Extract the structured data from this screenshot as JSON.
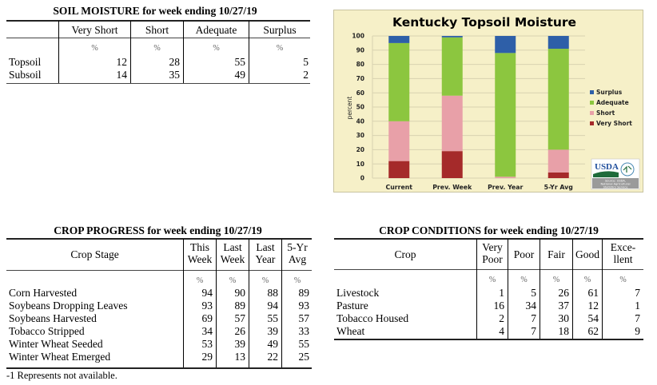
{
  "soil_moisture": {
    "title": "SOIL MOISTURE for week ending 10/27/19",
    "columns": [
      "Very Short",
      "Short",
      "Adequate",
      "Surplus"
    ],
    "unit": "%",
    "rows": [
      {
        "label": "Topsoil",
        "values": [
          "12",
          "28",
          "55",
          "5"
        ]
      },
      {
        "label": "Subsoil",
        "values": [
          "14",
          "35",
          "49",
          "2"
        ]
      }
    ]
  },
  "crop_progress": {
    "title": "CROP PROGRESS for week ending 10/27/19",
    "stage_header": "Crop Stage",
    "columns": [
      {
        "line1": "This",
        "line2": "Week"
      },
      {
        "line1": "Last",
        "line2": "Week"
      },
      {
        "line1": "Last",
        "line2": "Year"
      },
      {
        "line1": "5-Yr",
        "line2": "Avg"
      }
    ],
    "unit": "%",
    "rows": [
      {
        "label": "Corn Harvested",
        "values": [
          "94",
          "90",
          "88",
          "89"
        ]
      },
      {
        "label": "Soybeans Dropping Leaves",
        "values": [
          "93",
          "89",
          "94",
          "93"
        ]
      },
      {
        "label": "Soybeans Harvested",
        "values": [
          "69",
          "57",
          "55",
          "57"
        ]
      },
      {
        "label": "Tobacco Stripped",
        "values": [
          "34",
          "26",
          "39",
          "33"
        ]
      },
      {
        "label": "Winter Wheat Seeded",
        "values": [
          "53",
          "39",
          "49",
          "55"
        ]
      },
      {
        "label": "Winter Wheat Emerged",
        "values": [
          "29",
          "13",
          "22",
          "25"
        ]
      }
    ],
    "footnote": "-1 Represents not available."
  },
  "crop_conditions": {
    "title": "CROP CONDITIONS for week ending 10/27/19",
    "crop_header": "Crop",
    "columns": [
      {
        "line1": "Very",
        "line2": "Poor"
      },
      {
        "line1": "Poor",
        "line2": ""
      },
      {
        "line1": "Fair",
        "line2": ""
      },
      {
        "line1": "Good",
        "line2": ""
      },
      {
        "line1": "Exce-",
        "line2": "llent"
      }
    ],
    "unit": "%",
    "rows": [
      {
        "label": "Livestock",
        "values": [
          "1",
          "5",
          "26",
          "61",
          "7"
        ]
      },
      {
        "label": "Pasture",
        "values": [
          "16",
          "34",
          "37",
          "12",
          "1"
        ]
      },
      {
        "label": "Tobacco Housed",
        "values": [
          "2",
          "7",
          "30",
          "54",
          "7"
        ]
      },
      {
        "label": "Wheat",
        "values": [
          "4",
          "7",
          "18",
          "62",
          "9"
        ]
      }
    ]
  },
  "chart_data": {
    "type": "bar",
    "stacked": true,
    "title": "Kentucky Topsoil Moisture",
    "xlabel": "",
    "ylabel": "percent",
    "ylim": [
      0,
      100
    ],
    "yticks": [
      0,
      10,
      20,
      30,
      40,
      50,
      60,
      70,
      80,
      90,
      100
    ],
    "grid": true,
    "legend_position": "right",
    "categories": [
      "Current",
      "Prev. Week",
      "Prev. Year",
      "5-Yr Avg"
    ],
    "series": [
      {
        "name": "Very Short",
        "color": "#a52a2a",
        "values": [
          12,
          19,
          0,
          4
        ]
      },
      {
        "name": "Short",
        "color": "#e8a0a8",
        "values": [
          28,
          39,
          1,
          16
        ]
      },
      {
        "name": "Adequate",
        "color": "#8cc63f",
        "values": [
          55,
          41,
          87,
          71
        ]
      },
      {
        "name": "Surplus",
        "color": "#2e5fa8",
        "values": [
          5,
          1,
          12,
          9
        ]
      }
    ],
    "legend_order": [
      "Surplus",
      "Adequate",
      "Short",
      "Very Short"
    ],
    "logo": {
      "text": "USDA",
      "source_lines": [
        "Source: USDA,",
        "National Agricultural",
        "Statistics Service"
      ]
    }
  }
}
